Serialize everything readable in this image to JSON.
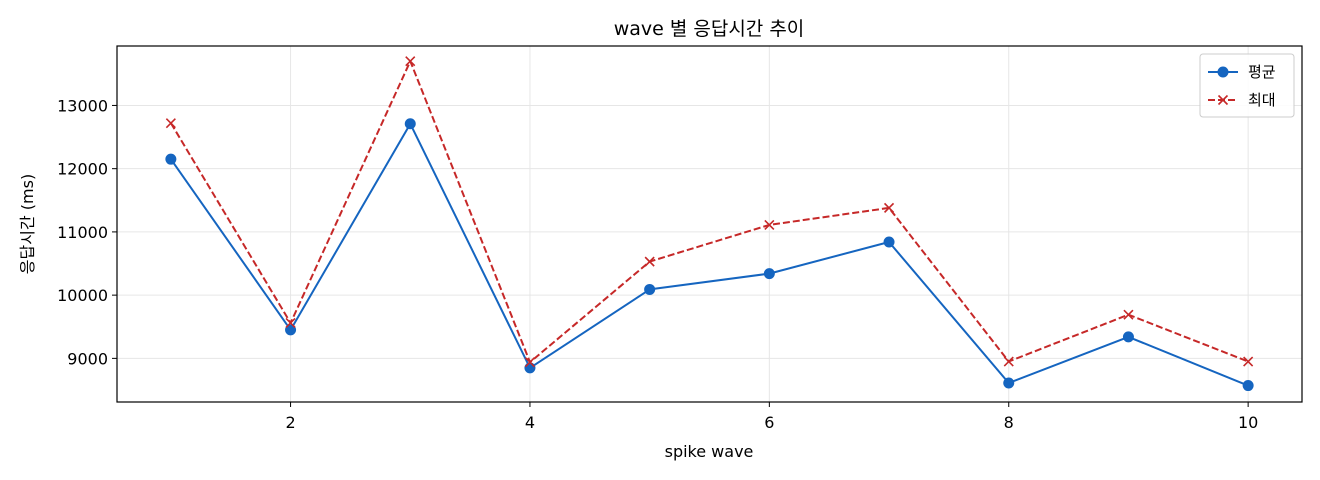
{
  "chart_data": {
    "type": "line",
    "title": "wave 별 응답시간 추이",
    "xlabel": "spike wave",
    "ylabel": "응답시간 (ms)",
    "x": [
      1,
      2,
      3,
      4,
      5,
      6,
      7,
      8,
      9,
      10
    ],
    "xlim": [
      0.55,
      10.45
    ],
    "ylim": [
      8310,
      13940
    ],
    "xticks": [
      2,
      4,
      6,
      8,
      10
    ],
    "yticks": [
      9000,
      10000,
      11000,
      12000,
      13000
    ],
    "grid": true,
    "legend_position": "top-right",
    "series": [
      {
        "name": "평균",
        "color": "#1565c0",
        "marker": "circle",
        "line_style": "solid",
        "values": [
          12150,
          9450,
          12710,
          8850,
          10090,
          10340,
          10840,
          8610,
          9340,
          8570
        ]
      },
      {
        "name": "최대",
        "color": "#c62828",
        "marker": "x",
        "line_style": "dashed",
        "values": [
          12720,
          9560,
          13700,
          8940,
          10530,
          11110,
          11380,
          8950,
          9690,
          8950
        ]
      }
    ]
  }
}
